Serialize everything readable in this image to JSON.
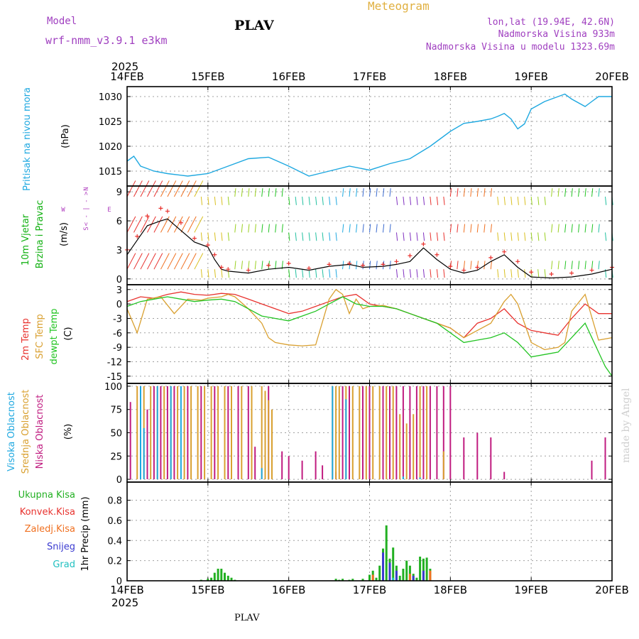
{
  "header": {
    "model_label": "Model",
    "model_name": "wrf-nmm_v3.9.1  e3km",
    "station": "PLAV",
    "product": "Meteogram",
    "coords": "lon,lat (19.94E, 42.6N)",
    "altitude": "Nadmorska Visina 933m",
    "model_altitude": "Nadmorska Visina u modelu 1323.69m",
    "year_top": "2025",
    "year_bottom": "2025",
    "footer_station": "PLAV",
    "credit": "made by Angel"
  },
  "colors": {
    "pressure": "#1ea8e0",
    "t2m": "#e8322e",
    "tsfc": "#d9a030",
    "dewpt": "#22c422",
    "cloud_high": "#1ea8e0",
    "cloud_mid": "#d9a030",
    "cloud_low": "#c01c80",
    "total_precip": "#22b022",
    "conv_precip": "#e8322e",
    "frz_precip": "#f07020",
    "snow": "#3a3ad0",
    "hail": "#20c0c0",
    "wind_label": "#10b010",
    "compass": "#b040c0",
    "meta": "#a040c0"
  },
  "chart_data": [
    {
      "type": "line",
      "id": "pressure",
      "title": "Pritisak na nivou mora",
      "ylabel": "(hPa)",
      "x_ticks": [
        "14FEB",
        "15FEB",
        "16FEB",
        "17FEB",
        "18FEB",
        "19FEB",
        "20FEB"
      ],
      "x_range": [
        0,
        144
      ],
      "ylim": [
        1012,
        1032
      ],
      "y_ticks": [
        1015,
        1020,
        1025,
        1030
      ],
      "series": [
        {
          "name": "MSLP",
          "color": "#1ea8e0",
          "x": [
            0,
            2,
            4,
            6,
            8,
            12,
            18,
            24,
            30,
            36,
            42,
            48,
            54,
            60,
            66,
            72,
            78,
            84,
            90,
            96,
            100,
            104,
            108,
            110,
            112,
            114,
            116,
            118,
            120,
            124,
            128,
            130,
            132,
            136,
            138,
            140,
            144
          ],
          "y": [
            1017,
            1018,
            1016,
            1015.5,
            1015,
            1014.5,
            1014,
            1014.5,
            1016,
            1017.5,
            1017.8,
            1016,
            1014,
            1015,
            1016,
            1015.2,
            1016.5,
            1017.5,
            1020,
            1023,
            1024.6,
            1025,
            1025.5,
            1026,
            1026.6,
            1025.5,
            1023.5,
            1024.5,
            1027.5,
            1029,
            1030,
            1030.5,
            1029.5,
            1028,
            1029,
            1030,
            1030
          ]
        }
      ]
    },
    {
      "type": "line",
      "id": "wind",
      "title": "10m Vjetar",
      "subtitle": "Brzina i Pravac",
      "ylabel": "(m/s)",
      "compass": {
        "n": "N",
        "w": "W",
        "e": "E",
        "s": "S",
        "arrows": "< - | - >"
      },
      "ylim": [
        -0.6,
        9.6
      ],
      "y_ticks": [
        0,
        3,
        6,
        9
      ],
      "series": [
        {
          "name": "speed",
          "color": "#000000",
          "x": [
            0,
            3,
            6,
            10,
            12,
            16,
            20,
            24,
            26,
            28,
            30,
            36,
            42,
            48,
            54,
            60,
            66,
            70,
            76,
            80,
            84,
            88,
            92,
            96,
            100,
            104,
            108,
            112,
            116,
            120,
            126,
            132,
            138,
            144
          ],
          "y": [
            2.5,
            4,
            5.5,
            6,
            6.2,
            5,
            3.8,
            3.3,
            2,
            1,
            0.8,
            0.6,
            1,
            1.2,
            0.9,
            1.3,
            1.5,
            1.2,
            1.3,
            1.5,
            1.8,
            3.2,
            2,
            1,
            0.6,
            0.9,
            1.8,
            2.5,
            1.2,
            0.2,
            0.1,
            0.2,
            0.5,
            1
          ]
        },
        {
          "name": "speed_markers",
          "color": "#e8322e",
          "x": [
            0,
            3,
            6,
            10,
            12,
            16,
            20,
            24,
            26,
            28,
            30,
            36,
            42,
            48,
            54,
            60,
            66,
            70,
            76,
            80,
            84,
            88,
            92,
            96,
            100,
            104,
            108,
            112,
            116,
            120,
            126,
            132,
            138,
            144
          ],
          "y": [
            3,
            4.4,
            6.5,
            7.3,
            7,
            5.8,
            4.2,
            3.5,
            2.5,
            1.2,
            1,
            0.9,
            1.4,
            1.6,
            1.1,
            1.5,
            1.6,
            1.4,
            1.5,
            1.8,
            2.4,
            3.6,
            2.5,
            1.3,
            0.9,
            1.2,
            2.2,
            2.8,
            1.8,
            0.7,
            0.5,
            0.6,
            0.9,
            1.2
          ]
        }
      ],
      "barb_levels": [
        8.5,
        4.8,
        1
      ],
      "barb_colors": [
        "#e8322e",
        "#f07020",
        "#d9c020",
        "#9ad020",
        "#22c422",
        "#20c0a0",
        "#1ea8e0",
        "#3a6ad0",
        "#8030c0"
      ]
    },
    {
      "type": "line",
      "id": "temperature",
      "labels": [
        "2m Temp",
        "SFC Temp",
        "dewpt Temp"
      ],
      "ylabel": "(C)",
      "ylim": [
        -16.5,
        4
      ],
      "y_ticks": [
        3,
        0,
        -3,
        -6,
        -9,
        -12,
        -15
      ],
      "series": [
        {
          "name": "2m Temp",
          "color": "#e8322e",
          "x": [
            0,
            4,
            8,
            12,
            16,
            20,
            24,
            28,
            32,
            36,
            40,
            44,
            48,
            52,
            56,
            60,
            64,
            68,
            72,
            76,
            80,
            84,
            88,
            92,
            96,
            100,
            104,
            108,
            112,
            116,
            120,
            124,
            128,
            132,
            136,
            140,
            144
          ],
          "y": [
            0.5,
            1.5,
            1.2,
            2,
            2.5,
            2,
            1.8,
            2.2,
            2,
            1,
            0,
            -1,
            -2,
            -1.5,
            -0.5,
            0.5,
            1.5,
            2,
            0,
            -0.5,
            -1,
            -2,
            -3,
            -4,
            -5,
            -7,
            -4,
            -3,
            -1,
            -4,
            -5.5,
            -6,
            -6.5,
            -3,
            0,
            -2,
            -2
          ]
        },
        {
          "name": "SFC Temp",
          "color": "#d9a030",
          "x": [
            0,
            3,
            6,
            10,
            14,
            18,
            22,
            24,
            28,
            30,
            32,
            36,
            40,
            42,
            44,
            48,
            52,
            56,
            60,
            62,
            64,
            66,
            68,
            70,
            72,
            76,
            80,
            84,
            88,
            92,
            96,
            100,
            104,
            108,
            112,
            114,
            116,
            120,
            124,
            128,
            130,
            132,
            136,
            140,
            144
          ],
          "y": [
            -1,
            -6,
            1,
            1.5,
            -2,
            1,
            0.8,
            1.2,
            1.5,
            2,
            1.5,
            -1,
            -4,
            -7,
            -8,
            -8.5,
            -8.7,
            -8.5,
            1,
            3,
            2,
            -2,
            1,
            -1,
            -0.5,
            -0.3,
            -1,
            -2,
            -3,
            -4,
            -5,
            -7,
            -5.5,
            -4,
            0.5,
            2,
            0,
            -8,
            -9.5,
            -9,
            -8,
            -1.5,
            2,
            -7.5,
            -7
          ]
        },
        {
          "name": "dewpt Temp",
          "color": "#22c422",
          "x": [
            0,
            4,
            8,
            12,
            16,
            20,
            24,
            28,
            32,
            36,
            40,
            44,
            48,
            52,
            56,
            60,
            64,
            68,
            72,
            76,
            80,
            84,
            88,
            92,
            96,
            100,
            104,
            108,
            112,
            116,
            120,
            124,
            128,
            132,
            136,
            140,
            142,
            144
          ],
          "y": [
            -0.5,
            0.5,
            1,
            1.5,
            1,
            0.5,
            0.8,
            1,
            0.5,
            -1,
            -2.5,
            -3,
            -3.5,
            -2.5,
            -1.5,
            0,
            1.5,
            0,
            -0.5,
            -0.5,
            -1,
            -2,
            -3,
            -4,
            -6,
            -8,
            -7.5,
            -7,
            -6,
            -8,
            -11,
            -10.5,
            -10,
            -7,
            -4,
            -10,
            -13,
            -15
          ]
        }
      ]
    },
    {
      "type": "bar",
      "id": "clouds",
      "labels": [
        "Visoka Oblacnost",
        "Srednja Oblacnost",
        "Niska Oblacnost"
      ],
      "ylabel": "(%)",
      "ylim": [
        -3,
        103
      ],
      "y_ticks": [
        0,
        25,
        50,
        75,
        100
      ],
      "series": [
        {
          "name": "Niska",
          "color": "#c01c80",
          "x": [
            1,
            4,
            6,
            8,
            10,
            12,
            14,
            18,
            22,
            26,
            30,
            33,
            36,
            38,
            42,
            46,
            48,
            52,
            56,
            58,
            62,
            64,
            66,
            70,
            72,
            76,
            78,
            80,
            82,
            84,
            86,
            88,
            90,
            92,
            94,
            96,
            100,
            104,
            108,
            112,
            138,
            142
          ],
          "y": [
            83,
            100,
            75,
            100,
            100,
            100,
            100,
            100,
            100,
            100,
            100,
            100,
            100,
            35,
            100,
            30,
            25,
            20,
            30,
            15,
            8,
            100,
            100,
            100,
            100,
            100,
            100,
            100,
            100,
            100,
            100,
            100,
            100,
            100,
            100,
            100,
            45,
            50,
            45,
            8,
            20,
            45
          ]
        },
        {
          "name": "Srednja",
          "color": "#d9a030",
          "x": [
            3,
            5,
            7,
            9,
            11,
            13,
            15,
            17,
            19,
            21,
            23,
            25,
            27,
            29,
            31,
            34,
            37,
            40,
            41,
            42,
            43,
            61,
            62,
            63,
            65,
            67,
            69,
            71,
            73,
            75,
            77,
            79,
            81,
            83,
            85,
            87,
            89,
            94
          ],
          "y": [
            100,
            100,
            100,
            100,
            100,
            100,
            100,
            100,
            100,
            100,
            100,
            100,
            100,
            100,
            100,
            100,
            100,
            100,
            95,
            85,
            75,
            100,
            100,
            100,
            100,
            100,
            100,
            100,
            100,
            100,
            100,
            100,
            70,
            60,
            70,
            100,
            100,
            30
          ]
        },
        {
          "name": "Visoka",
          "color": "#1ea8e0",
          "x": [
            4,
            5,
            9,
            13,
            16,
            40,
            61,
            65,
            82,
            87
          ],
          "y": [
            100,
            55,
            100,
            100,
            100,
            12,
            100,
            86,
            3,
            2
          ]
        }
      ]
    },
    {
      "type": "bar",
      "id": "precip",
      "labels": [
        "Ukupna Kisa",
        "Konvek.Kisa",
        "Zaledj.Kisa",
        "Snijeg",
        "Grad"
      ],
      "ylabel": "1hr Precip (mm)",
      "ylim": [
        0,
        0.98
      ],
      "y_ticks": [
        0,
        0.2,
        0.4,
        0.6,
        0.8
      ],
      "series": [
        {
          "name": "Ukupna Kisa",
          "color": "#22b022",
          "x": [
            22,
            24,
            25,
            26,
            27,
            28,
            29,
            30,
            31,
            32,
            62,
            63,
            64,
            66,
            67,
            70,
            72,
            73,
            74,
            75,
            76,
            77,
            78,
            79,
            80,
            81,
            82,
            83,
            84,
            85,
            86,
            87,
            88,
            89,
            90
          ],
          "y": [
            0.01,
            0.02,
            0.03,
            0.08,
            0.12,
            0.12,
            0.08,
            0.05,
            0.03,
            0.01,
            0.02,
            0.01,
            0.02,
            0.01,
            0.02,
            0.02,
            0.06,
            0.1,
            0.03,
            0.15,
            0.32,
            0.55,
            0.22,
            0.33,
            0.15,
            0.05,
            0.12,
            0.2,
            0.15,
            0.07,
            0.03,
            0.24,
            0.22,
            0.23,
            0.12
          ]
        },
        {
          "name": "Zaledj.Kisa",
          "color": "#f07020",
          "x": [
            73,
            84,
            90
          ],
          "y": [
            0.06,
            0.07,
            0.1
          ]
        },
        {
          "name": "Snijeg",
          "color": "#3a3ad0",
          "x": [
            76,
            78,
            80,
            85,
            88
          ],
          "y": [
            0.28,
            0.18,
            0.1,
            0.05,
            0.1
          ]
        },
        {
          "name": "Grad",
          "color": "#20c0c0",
          "x": [
            79
          ],
          "y": [
            0.03
          ]
        }
      ]
    }
  ]
}
